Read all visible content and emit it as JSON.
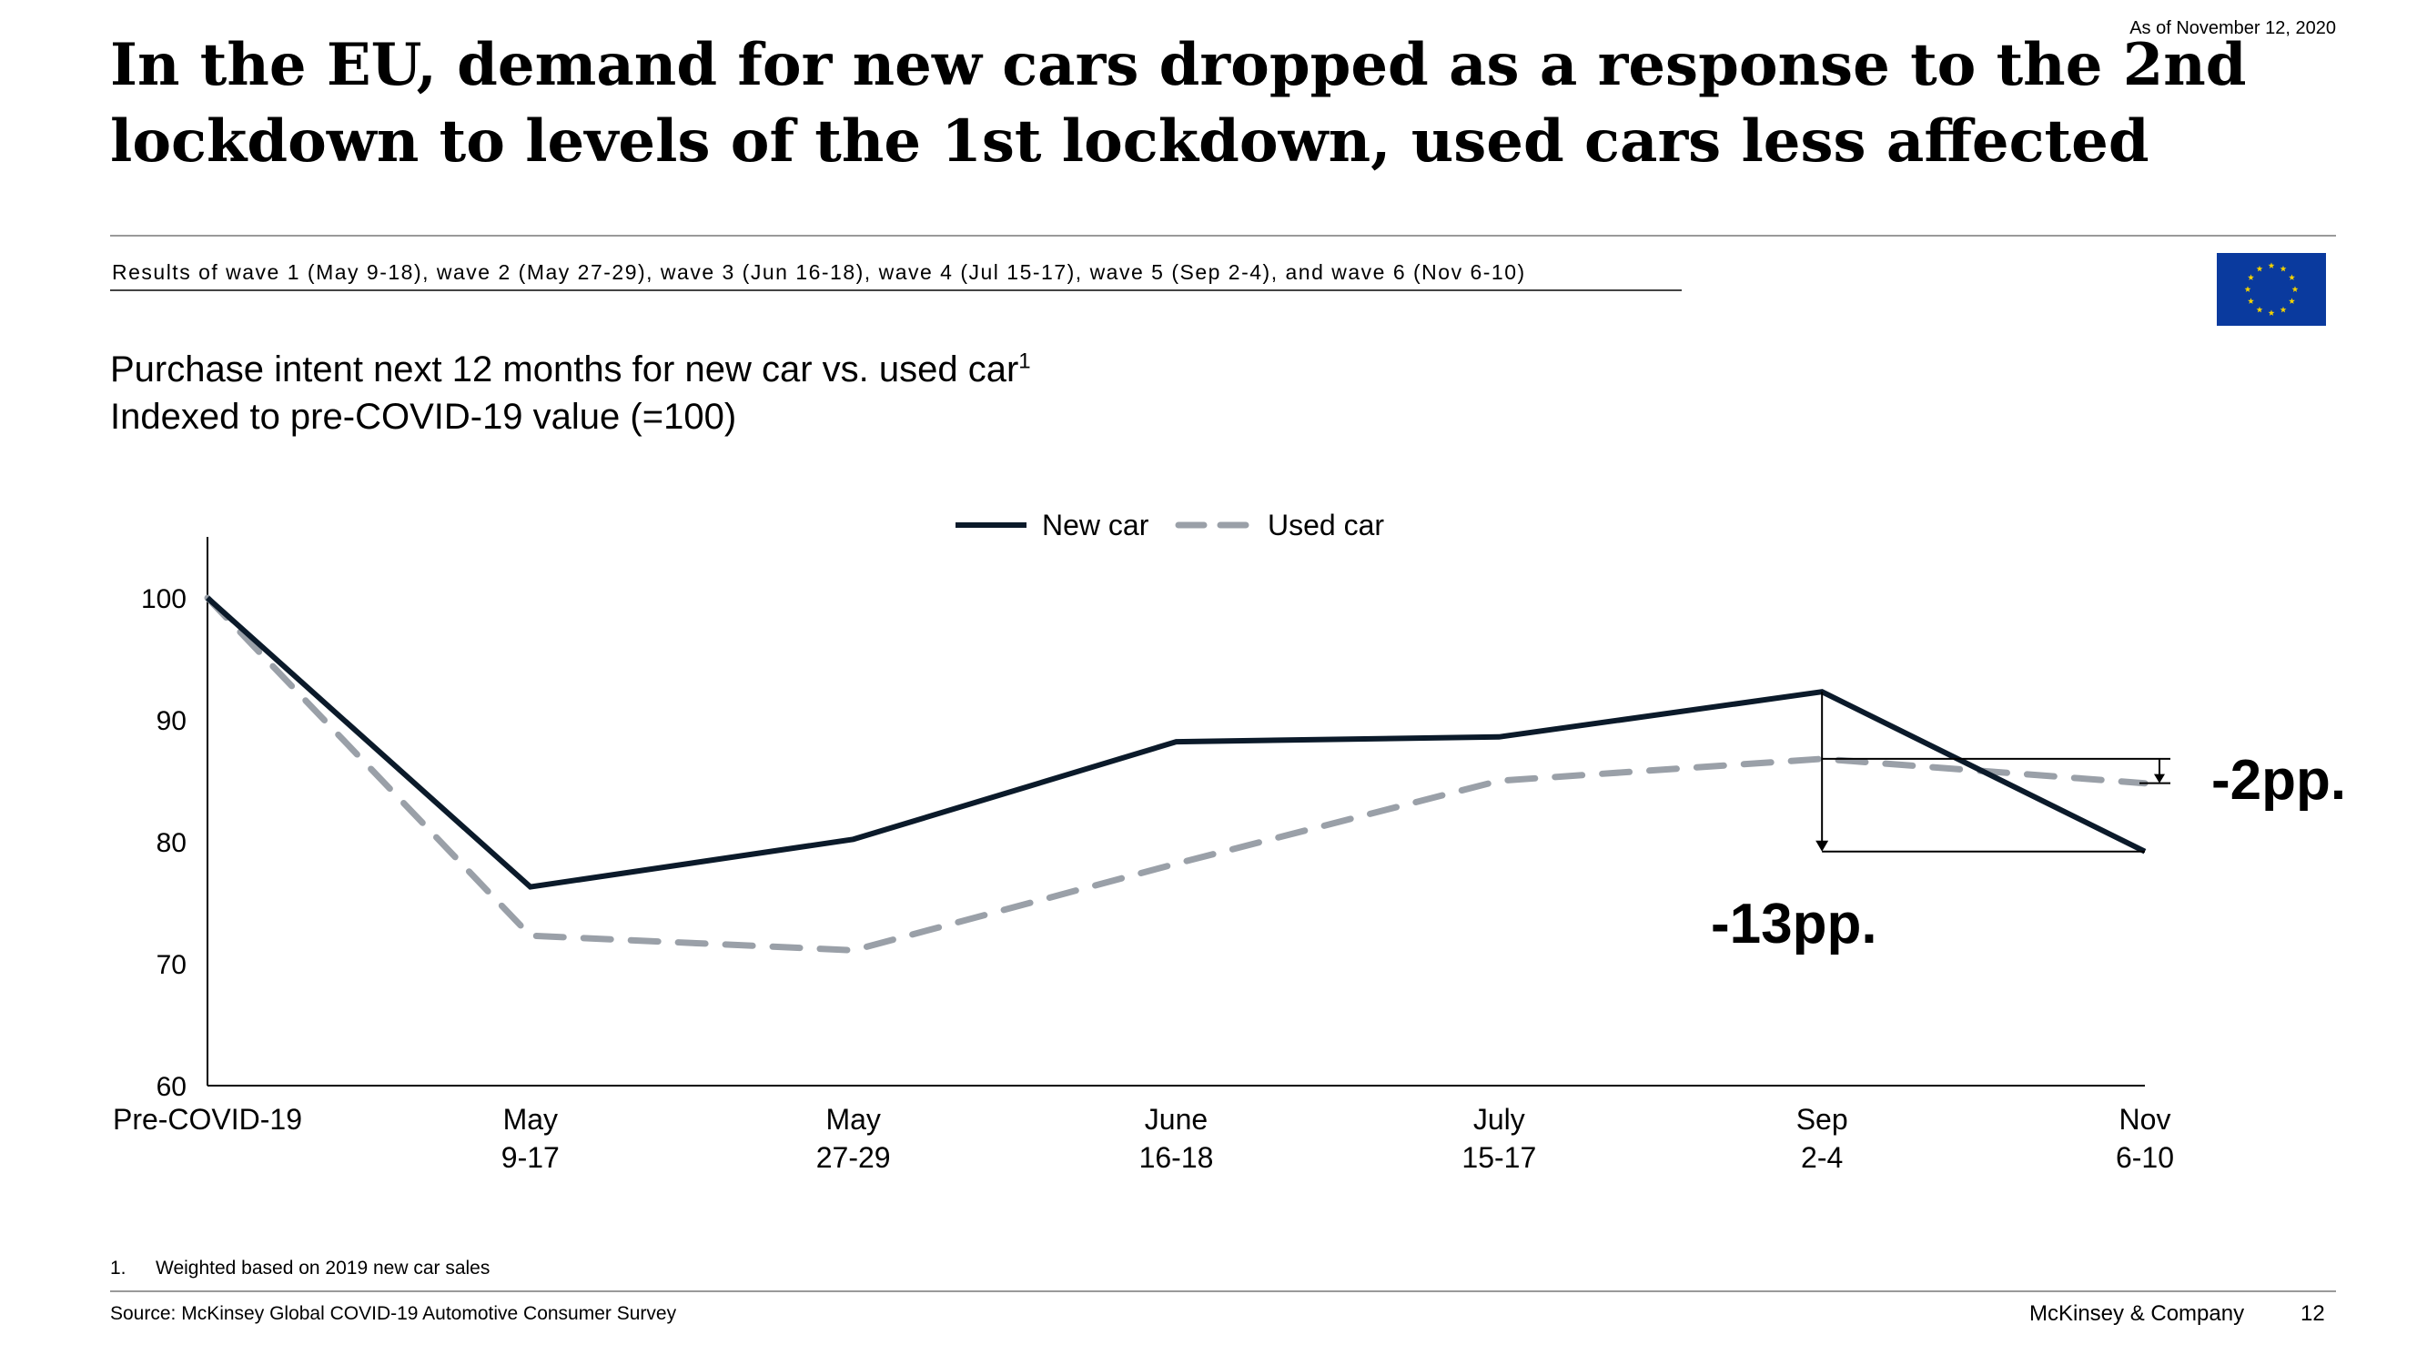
{
  "header": {
    "date": "As of November 12, 2020",
    "title_line1": "In the EU, demand for new cars dropped as a response to the 2nd",
    "title_line2": "lockdown to levels of the 1st lockdown, used cars less affected",
    "subtitle": "Results of wave 1 (May 9-18), wave 2 (May 27-29), wave 3 (Jun 16-18), wave 4 (Jul 15-17), wave 5 (Sep 2-4), and wave 6 (Nov 6-10)"
  },
  "chart_heading": {
    "line1": "Purchase intent next 12 months for new car vs. used car",
    "line1_sup": "1",
    "line2": "Indexed to pre-COVID-19 value (=100)"
  },
  "colors": {
    "new_car": "#0b1a2a",
    "used_car": "#9aa0a8",
    "flag_blue": "#0a3a9e",
    "flag_star": "#f3d200"
  },
  "chart_data": {
    "type": "line",
    "categories": [
      [
        "Pre-COVID-19"
      ],
      [
        "May",
        "9-17"
      ],
      [
        "May",
        "27-29"
      ],
      [
        "June",
        "16-18"
      ],
      [
        "July",
        "15-17"
      ],
      [
        "Sep",
        "2-4"
      ],
      [
        "Nov",
        "6-10"
      ]
    ],
    "series": [
      {
        "name": "New car",
        "style": "solid",
        "values": [
          100,
          76.3,
          80.2,
          88.2,
          88.6,
          92.3,
          79.2
        ]
      },
      {
        "name": "Used car",
        "style": "dashed",
        "values": [
          100,
          72.3,
          71.1,
          78.2,
          85.0,
          86.8,
          84.8
        ]
      }
    ],
    "ylim": [
      60,
      105
    ],
    "yticks": [
      60,
      70,
      80,
      90,
      100
    ],
    "legend_position": "top-center",
    "grid": false,
    "annotations": [
      {
        "label": "-13pp.",
        "series": "New car",
        "from_category": 5,
        "to_category": 6
      },
      {
        "label": "-2pp.",
        "series": "Used car",
        "from_category": 5,
        "to_category": 6
      }
    ]
  },
  "footer": {
    "footnote_num": "1.",
    "footnote_text": "Weighted based on 2019 new car sales",
    "source": "Source: McKinsey Global COVID-19 Automotive Consumer Survey",
    "company": "McKinsey & Company",
    "page": "12"
  }
}
